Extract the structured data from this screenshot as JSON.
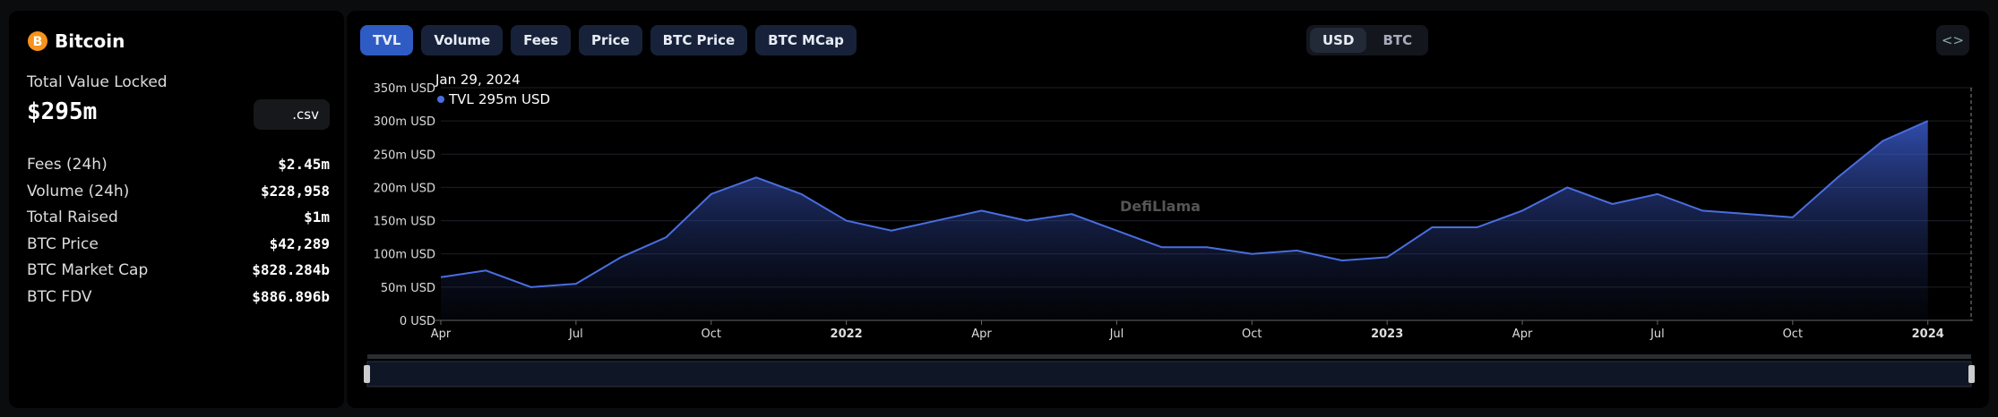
{
  "sidebar": {
    "title": "Bitcoin",
    "tvl_label": "Total Value Locked",
    "tvl_value": "$295m",
    "csv": ".csv",
    "rows": [
      [
        "Fees (24h)",
        "$2.45m"
      ],
      [
        "Volume (24h)",
        "$228,958"
      ],
      [
        "Total Raised",
        "$1m"
      ],
      [
        "BTC Price",
        "$42,289"
      ],
      [
        "BTC Market Cap",
        "$828.284b"
      ],
      [
        "BTC FDV",
        "$886.896b"
      ]
    ]
  },
  "tabs": [
    "TVL",
    "Volume",
    "Fees",
    "Price",
    "BTC Price",
    "BTC MCap"
  ],
  "currency": [
    "USD",
    "BTC"
  ],
  "watermark": "DefiLlama",
  "tooltip": {
    "date": "Jan 29, 2024",
    "value": "295m USD"
  },
  "chart_data": {
    "type": "area",
    "x": [
      "2021-04",
      "2021-05",
      "2021-06",
      "2021-07",
      "2021-08",
      "2021-09",
      "2021-10",
      "2021-11",
      "2021-12",
      "2022-01",
      "2022-02",
      "2022-03",
      "2022-04",
      "2022-05",
      "2022-06",
      "2022-07",
      "2022-08",
      "2022-09",
      "2022-10",
      "2022-11",
      "2022-12",
      "2023-01",
      "2023-02",
      "2023-03",
      "2023-04",
      "2023-05",
      "2023-06",
      "2023-07",
      "2023-08",
      "2023-09",
      "2023-10",
      "2023-11",
      "2023-12",
      "2024-01"
    ],
    "series": [
      {
        "name": "TVL",
        "color": "#4a6ee0",
        "values": [
          65,
          75,
          50,
          55,
          95,
          125,
          190,
          215,
          190,
          150,
          135,
          150,
          165,
          150,
          160,
          135,
          110,
          110,
          100,
          105,
          90,
          95,
          140,
          140,
          165,
          200,
          175,
          190,
          165,
          160,
          155,
          215,
          270,
          300
        ]
      }
    ],
    "xlim": [
      "2021-04",
      "2024-02"
    ],
    "xticks": [
      {
        "value": "2021-04",
        "label": "Apr"
      },
      {
        "value": "2021-07",
        "label": "Jul"
      },
      {
        "value": "2021-10",
        "label": "Oct"
      },
      {
        "value": "2022-01",
        "label": "2022"
      },
      {
        "value": "2022-04",
        "label": "Apr"
      },
      {
        "value": "2022-07",
        "label": "Jul"
      },
      {
        "value": "2022-10",
        "label": "Oct"
      },
      {
        "value": "2023-01",
        "label": "2023"
      },
      {
        "value": "2023-04",
        "label": "Apr"
      },
      {
        "value": "2023-07",
        "label": "Jul"
      },
      {
        "value": "2023-10",
        "label": "Oct"
      },
      {
        "value": "2024-01",
        "label": "2024"
      }
    ],
    "ylim": [
      0,
      350
    ],
    "yticks": [
      {
        "value": 0,
        "label": "0 USD"
      },
      {
        "value": 50,
        "label": "50m USD"
      },
      {
        "value": 100,
        "label": "100m USD"
      },
      {
        "value": 150,
        "label": "150m USD"
      },
      {
        "value": 200,
        "label": "200m USD"
      },
      {
        "value": 250,
        "label": "250m USD"
      },
      {
        "value": 300,
        "label": "300m USD"
      },
      {
        "value": 350,
        "label": "350m USD"
      }
    ],
    "grid": true
  }
}
